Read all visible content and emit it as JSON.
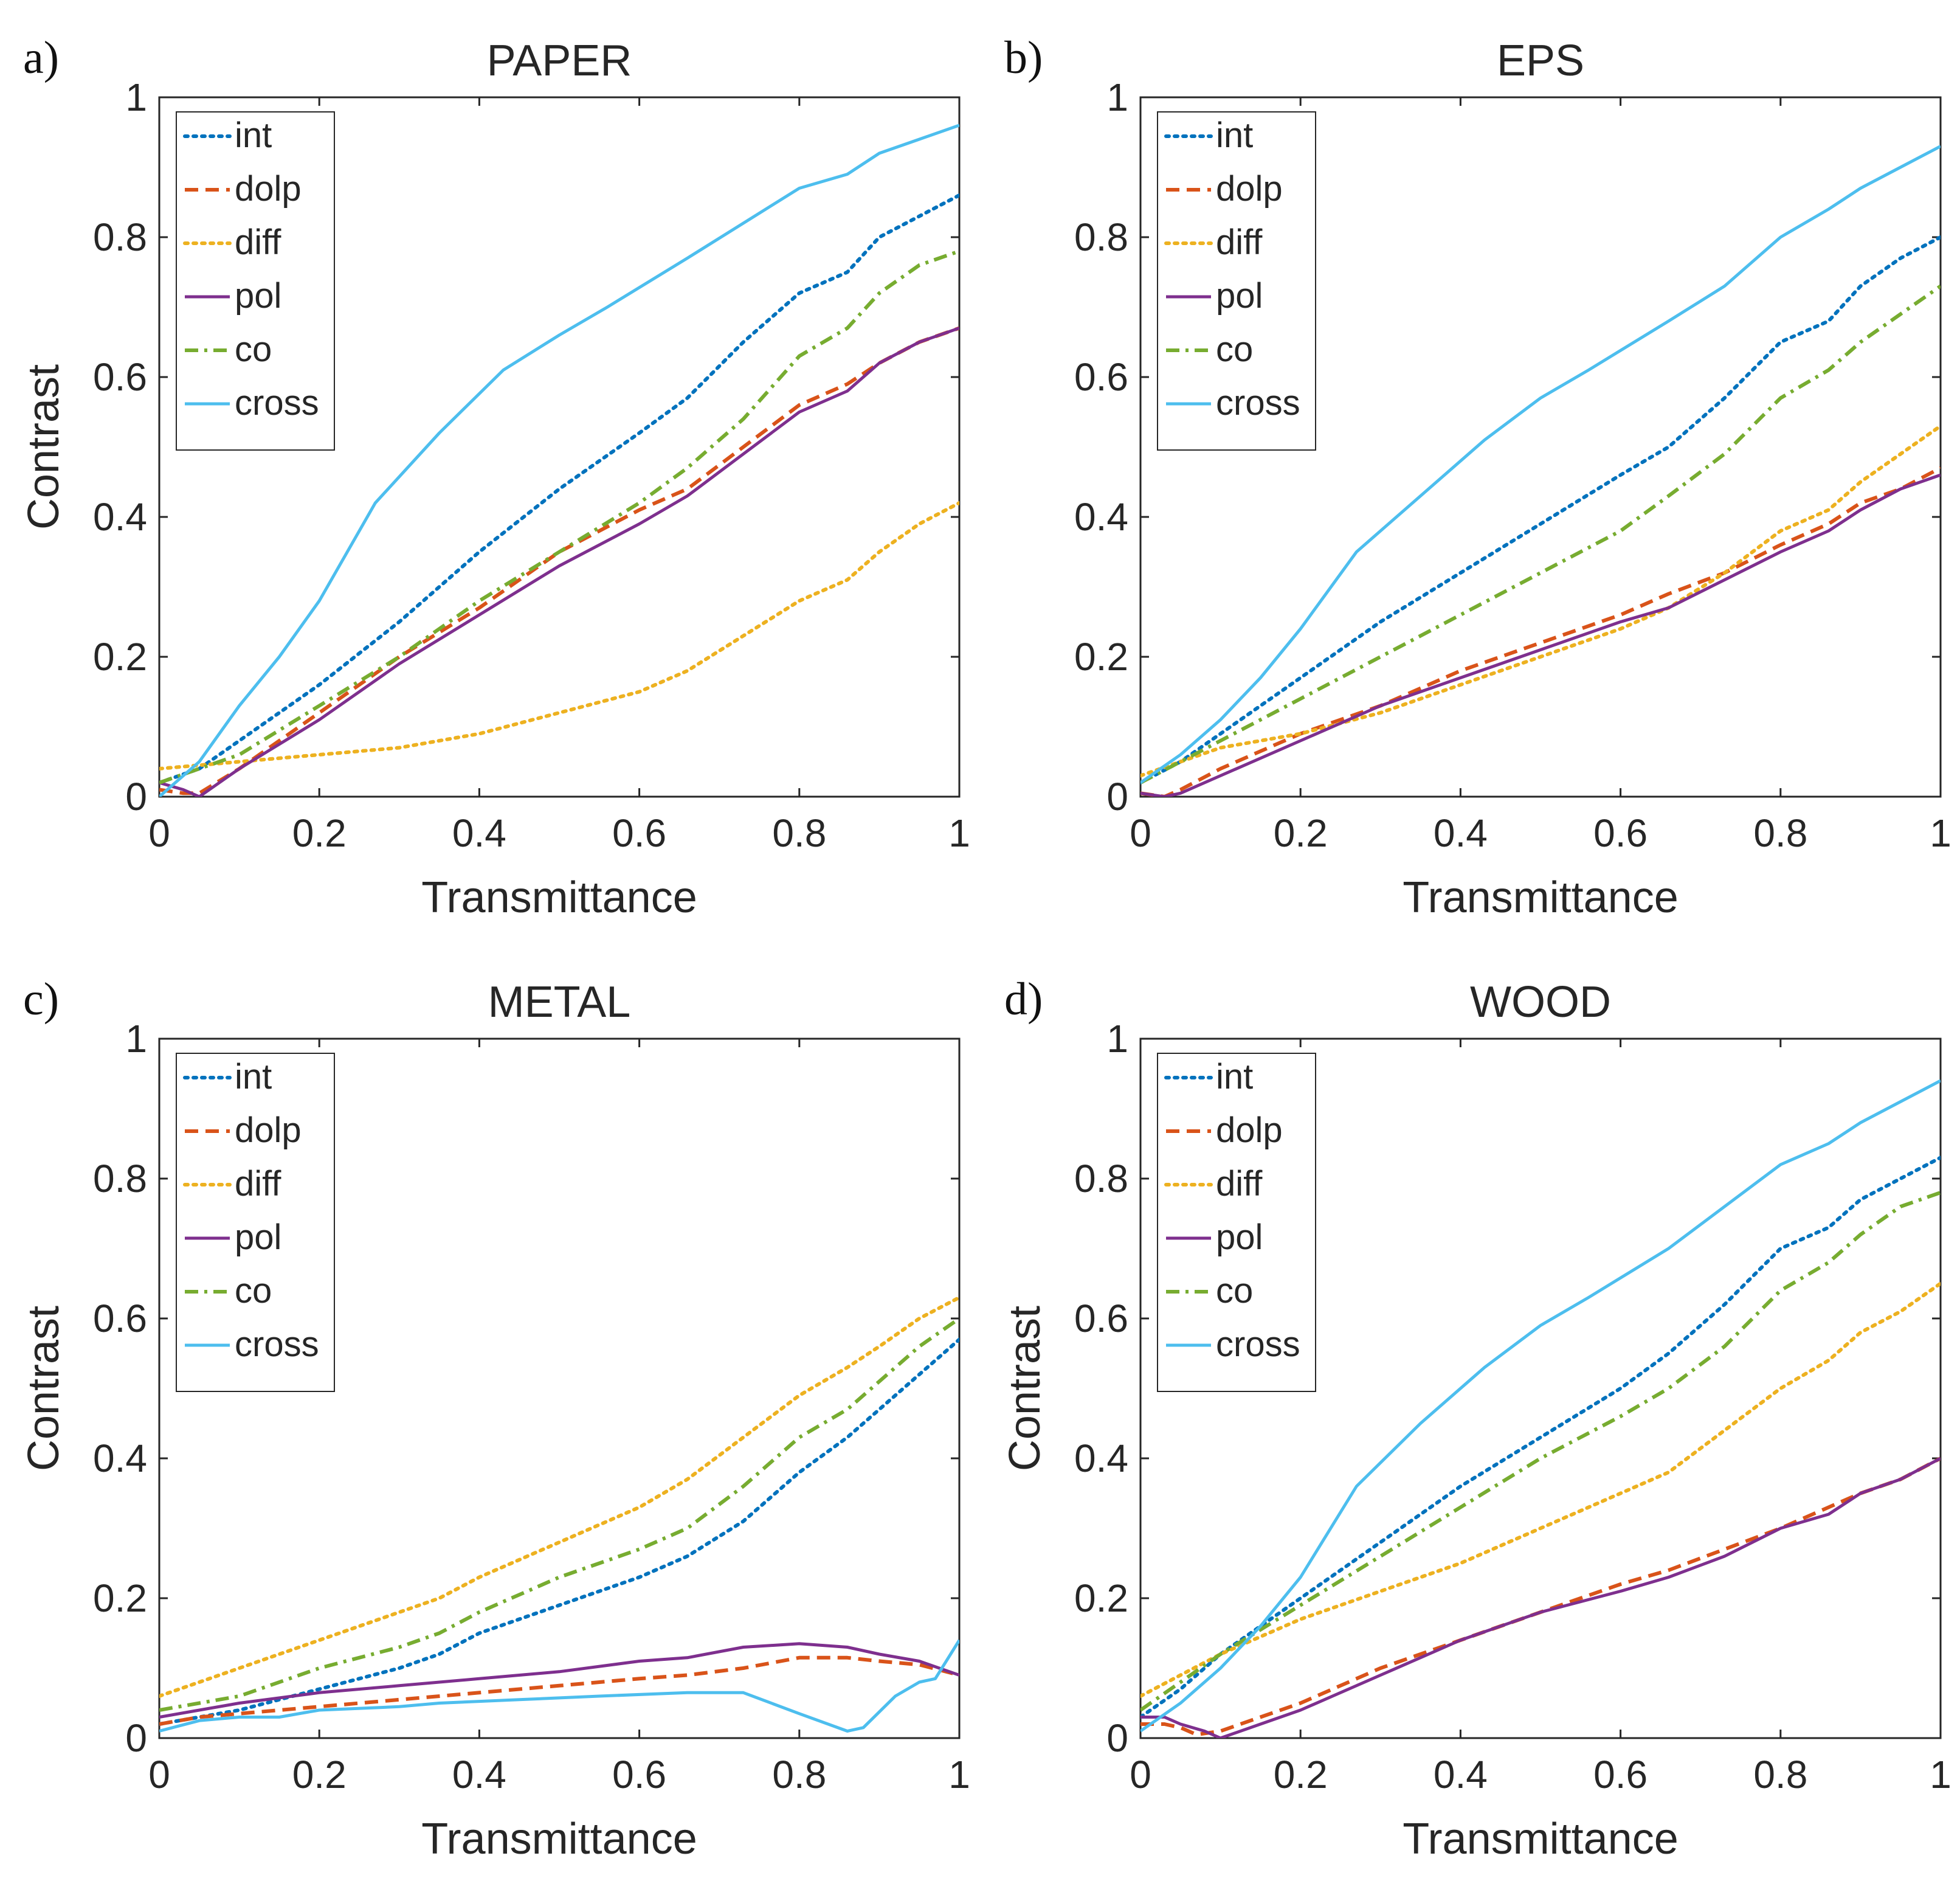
{
  "colors": {
    "int": "#0072BD",
    "dolp": "#D95319",
    "diff": "#EDB120",
    "pol": "#7E2F8E",
    "co": "#77AC30",
    "cross": "#4DBEEE"
  },
  "chart_data": [
    {
      "type": "line",
      "panel_label": "a)",
      "title": "PAPER",
      "xlabel": "Transmittance",
      "ylabel": "Contrast",
      "xlim": [
        0,
        1
      ],
      "ylim": [
        0,
        1
      ],
      "xticks": [
        "0",
        "0.2",
        "0.4",
        "0.6",
        "0.8",
        "1"
      ],
      "yticks": [
        "0",
        "0.2",
        "0.4",
        "0.6",
        "0.8",
        "1"
      ],
      "legend_position": "top-left",
      "series": [
        {
          "name": "int",
          "style": "dotted",
          "x": [
            0,
            0.05,
            0.1,
            0.2,
            0.3,
            0.4,
            0.5,
            0.6,
            0.66,
            0.73,
            0.8,
            0.86,
            0.9,
            0.95,
            1
          ],
          "y": [
            0.02,
            0.04,
            0.08,
            0.16,
            0.25,
            0.35,
            0.44,
            0.52,
            0.57,
            0.65,
            0.72,
            0.75,
            0.8,
            0.83,
            0.86
          ]
        },
        {
          "name": "dolp",
          "style": "dashed",
          "x": [
            0,
            0.03,
            0.05,
            0.1,
            0.2,
            0.3,
            0.4,
            0.5,
            0.6,
            0.66,
            0.73,
            0.8,
            0.86,
            0.9,
            0.95,
            1
          ],
          "y": [
            0.01,
            0.005,
            0.005,
            0.04,
            0.12,
            0.2,
            0.27,
            0.35,
            0.41,
            0.44,
            0.5,
            0.56,
            0.59,
            0.62,
            0.65,
            0.67
          ]
        },
        {
          "name": "diff",
          "style": "dotted",
          "x": [
            0,
            0.05,
            0.1,
            0.2,
            0.3,
            0.4,
            0.5,
            0.6,
            0.66,
            0.73,
            0.8,
            0.86,
            0.9,
            0.95,
            1
          ],
          "y": [
            0.04,
            0.045,
            0.05,
            0.06,
            0.07,
            0.09,
            0.12,
            0.15,
            0.18,
            0.23,
            0.28,
            0.31,
            0.35,
            0.39,
            0.42
          ]
        },
        {
          "name": "pol",
          "style": "solid",
          "x": [
            0,
            0.03,
            0.05,
            0.1,
            0.2,
            0.3,
            0.4,
            0.5,
            0.6,
            0.66,
            0.73,
            0.8,
            0.86,
            0.9,
            0.95,
            1
          ],
          "y": [
            0.02,
            0.01,
            0.0,
            0.04,
            0.11,
            0.19,
            0.26,
            0.33,
            0.39,
            0.43,
            0.49,
            0.55,
            0.58,
            0.62,
            0.65,
            0.67
          ]
        },
        {
          "name": "co",
          "style": "dashdot",
          "x": [
            0,
            0.05,
            0.1,
            0.2,
            0.3,
            0.4,
            0.5,
            0.6,
            0.66,
            0.73,
            0.8,
            0.86,
            0.9,
            0.95,
            1
          ],
          "y": [
            0.02,
            0.04,
            0.06,
            0.13,
            0.2,
            0.28,
            0.35,
            0.42,
            0.47,
            0.54,
            0.63,
            0.67,
            0.72,
            0.76,
            0.78
          ]
        },
        {
          "name": "cross",
          "style": "solid",
          "x": [
            0,
            0.05,
            0.1,
            0.15,
            0.2,
            0.27,
            0.35,
            0.43,
            0.5,
            0.56,
            0.66,
            0.73,
            0.8,
            0.86,
            0.9,
            0.95,
            1
          ],
          "y": [
            0.0,
            0.05,
            0.13,
            0.2,
            0.28,
            0.42,
            0.52,
            0.61,
            0.66,
            0.7,
            0.77,
            0.82,
            0.87,
            0.89,
            0.92,
            0.94,
            0.96
          ]
        }
      ]
    },
    {
      "type": "line",
      "panel_label": "b)",
      "title": "EPS",
      "xlabel": "Transmittance",
      "ylabel": "",
      "xlim": [
        0,
        1
      ],
      "ylim": [
        0,
        1
      ],
      "xticks": [
        "0",
        "0.2",
        "0.4",
        "0.6",
        "0.8",
        "1"
      ],
      "yticks": [
        "0",
        "0.2",
        "0.4",
        "0.6",
        "0.8",
        "1"
      ],
      "legend_position": "top-left",
      "series": [
        {
          "name": "int",
          "style": "dotted",
          "x": [
            0,
            0.05,
            0.1,
            0.2,
            0.3,
            0.4,
            0.5,
            0.6,
            0.66,
            0.73,
            0.8,
            0.86,
            0.9,
            0.95,
            1
          ],
          "y": [
            0.02,
            0.05,
            0.09,
            0.17,
            0.25,
            0.32,
            0.39,
            0.46,
            0.5,
            0.57,
            0.65,
            0.68,
            0.73,
            0.77,
            0.8
          ]
        },
        {
          "name": "dolp",
          "style": "dashed",
          "x": [
            0,
            0.03,
            0.05,
            0.1,
            0.2,
            0.3,
            0.4,
            0.5,
            0.6,
            0.66,
            0.73,
            0.8,
            0.86,
            0.9,
            0.95,
            1
          ],
          "y": [
            0.005,
            0.0,
            0.01,
            0.04,
            0.09,
            0.13,
            0.18,
            0.22,
            0.26,
            0.29,
            0.32,
            0.36,
            0.39,
            0.42,
            0.44,
            0.47
          ]
        },
        {
          "name": "diff",
          "style": "dotted",
          "x": [
            0,
            0.05,
            0.1,
            0.2,
            0.3,
            0.4,
            0.5,
            0.6,
            0.66,
            0.73,
            0.8,
            0.86,
            0.9,
            0.95,
            1
          ],
          "y": [
            0.03,
            0.05,
            0.07,
            0.09,
            0.12,
            0.16,
            0.2,
            0.24,
            0.27,
            0.32,
            0.38,
            0.41,
            0.45,
            0.49,
            0.53
          ]
        },
        {
          "name": "pol",
          "style": "solid",
          "x": [
            0,
            0.03,
            0.05,
            0.1,
            0.2,
            0.3,
            0.4,
            0.5,
            0.6,
            0.66,
            0.73,
            0.8,
            0.86,
            0.9,
            0.95,
            1
          ],
          "y": [
            0.005,
            0.0,
            0.005,
            0.03,
            0.08,
            0.13,
            0.17,
            0.21,
            0.25,
            0.27,
            0.31,
            0.35,
            0.38,
            0.41,
            0.44,
            0.46
          ]
        },
        {
          "name": "co",
          "style": "dashdot",
          "x": [
            0,
            0.05,
            0.1,
            0.2,
            0.3,
            0.4,
            0.5,
            0.6,
            0.66,
            0.73,
            0.8,
            0.86,
            0.9,
            0.95,
            1
          ],
          "y": [
            0.02,
            0.05,
            0.08,
            0.14,
            0.2,
            0.26,
            0.32,
            0.38,
            0.43,
            0.49,
            0.57,
            0.61,
            0.65,
            0.69,
            0.73
          ]
        },
        {
          "name": "cross",
          "style": "solid",
          "x": [
            0,
            0.05,
            0.1,
            0.15,
            0.2,
            0.27,
            0.35,
            0.43,
            0.5,
            0.56,
            0.66,
            0.73,
            0.8,
            0.86,
            0.9,
            0.95,
            1
          ],
          "y": [
            0.02,
            0.06,
            0.11,
            0.17,
            0.24,
            0.35,
            0.43,
            0.51,
            0.57,
            0.61,
            0.68,
            0.73,
            0.8,
            0.84,
            0.87,
            0.9,
            0.93
          ]
        }
      ]
    },
    {
      "type": "line",
      "panel_label": "c)",
      "title": "METAL",
      "xlabel": "Transmittance",
      "ylabel": "Contrast",
      "xlim": [
        0,
        1
      ],
      "ylim": [
        0,
        1
      ],
      "xticks": [
        "0",
        "0.2",
        "0.4",
        "0.6",
        "0.8",
        "1"
      ],
      "yticks": [
        "0",
        "0.2",
        "0.4",
        "0.6",
        "0.8",
        "1"
      ],
      "legend_position": "top-left",
      "series": [
        {
          "name": "int",
          "style": "dotted",
          "x": [
            0,
            0.05,
            0.1,
            0.2,
            0.3,
            0.35,
            0.4,
            0.5,
            0.6,
            0.66,
            0.73,
            0.8,
            0.86,
            0.9,
            0.95,
            1
          ],
          "y": [
            0.02,
            0.03,
            0.04,
            0.07,
            0.1,
            0.12,
            0.15,
            0.19,
            0.23,
            0.26,
            0.31,
            0.38,
            0.43,
            0.47,
            0.52,
            0.57
          ]
        },
        {
          "name": "dolp",
          "style": "dashed",
          "x": [
            0,
            0.05,
            0.1,
            0.2,
            0.3,
            0.4,
            0.5,
            0.6,
            0.66,
            0.73,
            0.8,
            0.86,
            0.9,
            0.95,
            1
          ],
          "y": [
            0.02,
            0.03,
            0.035,
            0.045,
            0.055,
            0.065,
            0.075,
            0.085,
            0.09,
            0.1,
            0.115,
            0.115,
            0.11,
            0.105,
            0.09
          ]
        },
        {
          "name": "diff",
          "style": "dotted",
          "x": [
            0,
            0.05,
            0.1,
            0.2,
            0.3,
            0.35,
            0.4,
            0.5,
            0.6,
            0.66,
            0.73,
            0.8,
            0.86,
            0.9,
            0.95,
            1
          ],
          "y": [
            0.06,
            0.08,
            0.1,
            0.14,
            0.18,
            0.2,
            0.23,
            0.28,
            0.33,
            0.37,
            0.43,
            0.49,
            0.53,
            0.56,
            0.6,
            0.63
          ]
        },
        {
          "name": "pol",
          "style": "solid",
          "x": [
            0,
            0.05,
            0.1,
            0.2,
            0.3,
            0.4,
            0.5,
            0.6,
            0.66,
            0.73,
            0.8,
            0.86,
            0.9,
            0.95,
            1
          ],
          "y": [
            0.03,
            0.04,
            0.05,
            0.065,
            0.075,
            0.085,
            0.095,
            0.11,
            0.115,
            0.13,
            0.135,
            0.13,
            0.12,
            0.11,
            0.09
          ]
        },
        {
          "name": "co",
          "style": "dashdot",
          "x": [
            0,
            0.05,
            0.1,
            0.2,
            0.3,
            0.35,
            0.4,
            0.5,
            0.6,
            0.66,
            0.73,
            0.8,
            0.86,
            0.9,
            0.95,
            1
          ],
          "y": [
            0.04,
            0.05,
            0.06,
            0.1,
            0.13,
            0.15,
            0.18,
            0.23,
            0.27,
            0.3,
            0.36,
            0.43,
            0.47,
            0.51,
            0.56,
            0.6
          ]
        },
        {
          "name": "cross",
          "style": "solid",
          "x": [
            0,
            0.05,
            0.1,
            0.15,
            0.2,
            0.3,
            0.35,
            0.45,
            0.55,
            0.66,
            0.73,
            0.8,
            0.86,
            0.88,
            0.92,
            0.95,
            0.97,
            1
          ],
          "y": [
            0.01,
            0.025,
            0.03,
            0.03,
            0.04,
            0.045,
            0.05,
            0.055,
            0.06,
            0.065,
            0.065,
            0.035,
            0.01,
            0.015,
            0.06,
            0.08,
            0.085,
            0.14
          ]
        }
      ]
    },
    {
      "type": "line",
      "panel_label": "d)",
      "title": "WOOD",
      "xlabel": "Transmittance",
      "ylabel": "Contrast",
      "xlim": [
        0,
        1
      ],
      "ylim": [
        0,
        1
      ],
      "xticks": [
        "0",
        "0.2",
        "0.4",
        "0.6",
        "0.8",
        "1"
      ],
      "yticks": [
        "0",
        "0.2",
        "0.4",
        "0.6",
        "0.8",
        "1"
      ],
      "legend_position": "top-left",
      "series": [
        {
          "name": "int",
          "style": "dotted",
          "x": [
            0,
            0.05,
            0.1,
            0.2,
            0.3,
            0.4,
            0.5,
            0.6,
            0.66,
            0.73,
            0.8,
            0.86,
            0.9,
            0.95,
            1
          ],
          "y": [
            0.03,
            0.07,
            0.12,
            0.2,
            0.28,
            0.36,
            0.43,
            0.5,
            0.55,
            0.62,
            0.7,
            0.73,
            0.77,
            0.8,
            0.83
          ]
        },
        {
          "name": "dolp",
          "style": "dashed",
          "x": [
            0,
            0.03,
            0.05,
            0.07,
            0.1,
            0.15,
            0.2,
            0.3,
            0.4,
            0.5,
            0.6,
            0.66,
            0.73,
            0.8,
            0.86,
            0.9,
            0.95,
            1
          ],
          "y": [
            0.02,
            0.02,
            0.015,
            0.005,
            0.01,
            0.03,
            0.05,
            0.1,
            0.14,
            0.18,
            0.22,
            0.24,
            0.27,
            0.3,
            0.33,
            0.35,
            0.37,
            0.4
          ]
        },
        {
          "name": "diff",
          "style": "dotted",
          "x": [
            0,
            0.05,
            0.1,
            0.2,
            0.3,
            0.4,
            0.5,
            0.6,
            0.66,
            0.73,
            0.8,
            0.86,
            0.9,
            0.95,
            1
          ],
          "y": [
            0.06,
            0.09,
            0.12,
            0.17,
            0.21,
            0.25,
            0.3,
            0.35,
            0.38,
            0.44,
            0.5,
            0.54,
            0.58,
            0.61,
            0.65
          ]
        },
        {
          "name": "pol",
          "style": "solid",
          "x": [
            0,
            0.03,
            0.05,
            0.08,
            0.1,
            0.15,
            0.2,
            0.3,
            0.4,
            0.5,
            0.6,
            0.66,
            0.73,
            0.8,
            0.86,
            0.9,
            0.95,
            1
          ],
          "y": [
            0.03,
            0.03,
            0.02,
            0.01,
            0.0,
            0.02,
            0.04,
            0.09,
            0.14,
            0.18,
            0.21,
            0.23,
            0.26,
            0.3,
            0.32,
            0.35,
            0.37,
            0.4
          ]
        },
        {
          "name": "co",
          "style": "dashdot",
          "x": [
            0,
            0.05,
            0.1,
            0.2,
            0.3,
            0.4,
            0.5,
            0.6,
            0.66,
            0.73,
            0.8,
            0.86,
            0.9,
            0.95,
            1
          ],
          "y": [
            0.04,
            0.08,
            0.12,
            0.19,
            0.26,
            0.33,
            0.4,
            0.46,
            0.5,
            0.56,
            0.64,
            0.68,
            0.72,
            0.76,
            0.78
          ]
        },
        {
          "name": "cross",
          "style": "solid",
          "x": [
            0,
            0.05,
            0.1,
            0.15,
            0.2,
            0.27,
            0.35,
            0.43,
            0.5,
            0.56,
            0.66,
            0.73,
            0.8,
            0.86,
            0.9,
            0.95,
            1
          ],
          "y": [
            0.01,
            0.05,
            0.1,
            0.16,
            0.23,
            0.36,
            0.45,
            0.53,
            0.59,
            0.63,
            0.7,
            0.76,
            0.82,
            0.85,
            0.88,
            0.91,
            0.94
          ]
        }
      ]
    }
  ]
}
